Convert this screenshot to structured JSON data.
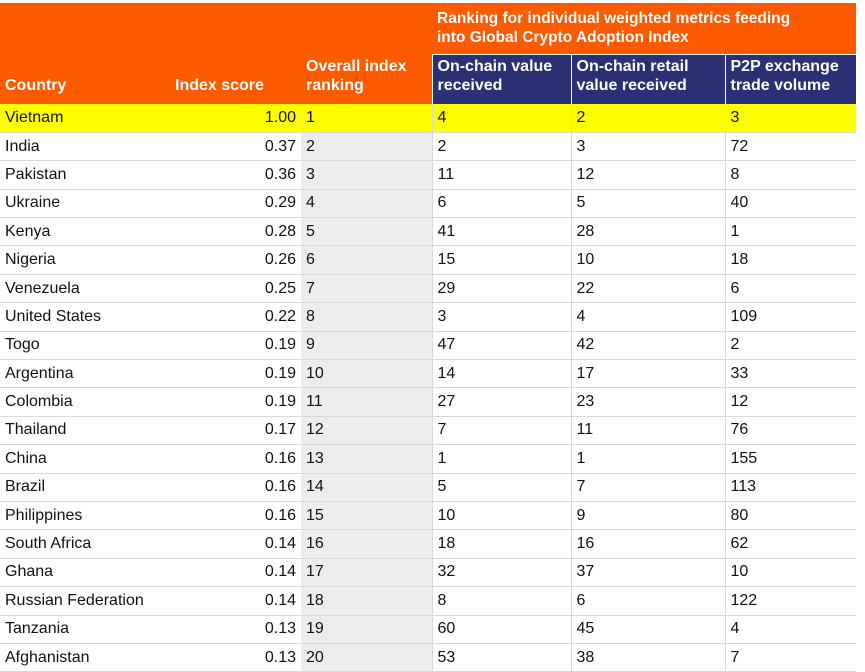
{
  "headers": {
    "country": "Country",
    "index_score": "Index score",
    "overall_ranking_l1": "Overall index",
    "overall_ranking_l2": "ranking",
    "group_l1": "Ranking for individual weighted metrics feeding",
    "group_l2": "into Global Crypto Adoption Index",
    "onchain_value_l1": "On-chain value",
    "onchain_value_l2": "received",
    "onchain_retail_l1": "On-chain retail",
    "onchain_retail_l2": "value received",
    "p2p_l1": "P2P exchange",
    "p2p_l2": "trade volume"
  },
  "colors": {
    "header_orange": "#fe5a00",
    "header_navy": "#2a3073",
    "highlight": "#fefe00",
    "rank_column": "#ececec"
  },
  "rows": [
    {
      "country": "Vietnam",
      "score": "1.00",
      "rank": "1",
      "onchain": "4",
      "retail": "2",
      "p2p": "3",
      "highlight": true
    },
    {
      "country": "India",
      "score": "0.37",
      "rank": "2",
      "onchain": "2",
      "retail": "3",
      "p2p": "72"
    },
    {
      "country": "Pakistan",
      "score": "0.36",
      "rank": "3",
      "onchain": "11",
      "retail": "12",
      "p2p": "8"
    },
    {
      "country": "Ukraine",
      "score": "0.29",
      "rank": "4",
      "onchain": "6",
      "retail": "5",
      "p2p": "40"
    },
    {
      "country": "Kenya",
      "score": "0.28",
      "rank": "5",
      "onchain": "41",
      "retail": "28",
      "p2p": "1"
    },
    {
      "country": "Nigeria",
      "score": "0.26",
      "rank": "6",
      "onchain": "15",
      "retail": "10",
      "p2p": "18"
    },
    {
      "country": "Venezuela",
      "score": "0.25",
      "rank": "7",
      "onchain": "29",
      "retail": "22",
      "p2p": "6"
    },
    {
      "country": "United States",
      "score": "0.22",
      "rank": "8",
      "onchain": "3",
      "retail": "4",
      "p2p": "109"
    },
    {
      "country": "Togo",
      "score": "0.19",
      "rank": "9",
      "onchain": "47",
      "retail": "42",
      "p2p": "2"
    },
    {
      "country": "Argentina",
      "score": "0.19",
      "rank": "10",
      "onchain": "14",
      "retail": "17",
      "p2p": "33"
    },
    {
      "country": "Colombia",
      "score": "0.19",
      "rank": "11",
      "onchain": "27",
      "retail": "23",
      "p2p": "12"
    },
    {
      "country": "Thailand",
      "score": "0.17",
      "rank": "12",
      "onchain": "7",
      "retail": "11",
      "p2p": "76"
    },
    {
      "country": "China",
      "score": "0.16",
      "rank": "13",
      "onchain": "1",
      "retail": "1",
      "p2p": "155"
    },
    {
      "country": "Brazil",
      "score": "0.16",
      "rank": "14",
      "onchain": "5",
      "retail": "7",
      "p2p": "113"
    },
    {
      "country": "Philippines",
      "score": "0.16",
      "rank": "15",
      "onchain": "10",
      "retail": "9",
      "p2p": "80"
    },
    {
      "country": "South Africa",
      "score": "0.14",
      "rank": "16",
      "onchain": "18",
      "retail": "16",
      "p2p": "62"
    },
    {
      "country": "Ghana",
      "score": "0.14",
      "rank": "17",
      "onchain": "32",
      "retail": "37",
      "p2p": "10"
    },
    {
      "country": "Russian Federation",
      "score": "0.14",
      "rank": "18",
      "onchain": "8",
      "retail": "6",
      "p2p": "122"
    },
    {
      "country": "Tanzania",
      "score": "0.13",
      "rank": "19",
      "onchain": "60",
      "retail": "45",
      "p2p": "4"
    },
    {
      "country": "Afghanistan",
      "score": "0.13",
      "rank": "20",
      "onchain": "53",
      "retail": "38",
      "p2p": "7"
    }
  ]
}
